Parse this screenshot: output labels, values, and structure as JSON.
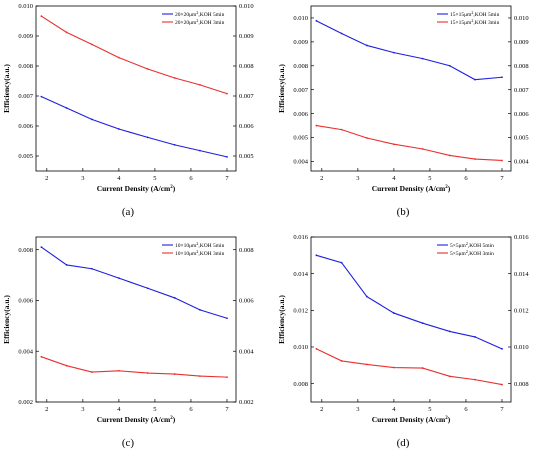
{
  "colors": {
    "series_blue": "#1f1fe0",
    "series_red": "#e8302f"
  },
  "chart_data": [
    {
      "type": "line",
      "caption": "(a)",
      "xlabel": "Current Density (A/cm",
      "xlabel_sup": "2",
      "xlabel_end": ")",
      "ylabel": "Efficiency(a.u.)",
      "xlim": [
        1.7,
        7.25
      ],
      "ylim": [
        0.0045,
        0.01
      ],
      "xticks": [
        "2",
        "3",
        "4",
        "5",
        "6",
        "7"
      ],
      "yticks": [
        "0.005",
        "0.006",
        "0.007",
        "0.008",
        "0.009",
        "0.010"
      ],
      "grid": false,
      "legend_position": "top-right",
      "x": [
        1.85,
        2.55,
        3.25,
        4.0,
        4.8,
        5.55,
        6.25,
        7.0
      ],
      "series": [
        {
          "name": "20×20μm",
          "name_sup": "2",
          "name_end": ",KOH 5min",
          "color": "#1f1fe0",
          "values": [
            0.00698,
            0.0066,
            0.00622,
            0.0059,
            0.00562,
            0.00537,
            0.00518,
            0.00497
          ]
        },
        {
          "name": "20×20μm",
          "name_sup": "2",
          "name_end": ",KOH 3min",
          "color": "#e8302f",
          "values": [
            0.00966,
            0.00912,
            0.00872,
            0.00828,
            0.0079,
            0.0076,
            0.00737,
            0.00708
          ]
        }
      ]
    },
    {
      "type": "line",
      "caption": "(b)",
      "xlabel": "Current Density (A/cm",
      "xlabel_sup": "2",
      "xlabel_end": ")",
      "ylabel": "Efficiency(a.u.)",
      "xlim": [
        1.7,
        7.25
      ],
      "ylim": [
        0.0036,
        0.0105
      ],
      "xticks": [
        "2",
        "3",
        "4",
        "5",
        "6",
        "7"
      ],
      "yticks": [
        "0.004",
        "0.005",
        "0.006",
        "0.007",
        "0.008",
        "0.009",
        "0.010"
      ],
      "grid": false,
      "legend_position": "top-right",
      "x": [
        1.85,
        2.55,
        3.25,
        4.0,
        4.8,
        5.55,
        6.25,
        7.0
      ],
      "series": [
        {
          "name": "15×15μm",
          "name_sup": "2",
          "name_end": ",KOH 5min",
          "color": "#1f1fe0",
          "values": [
            0.00988,
            0.00935,
            0.00885,
            0.00855,
            0.0083,
            0.008,
            0.00742,
            0.00752
          ]
        },
        {
          "name": "15×15μm",
          "name_sup": "2",
          "name_end": ",KOH 3min",
          "color": "#e8302f",
          "values": [
            0.0055,
            0.00533,
            0.00498,
            0.00472,
            0.00452,
            0.00425,
            0.0041,
            0.00404
          ]
        }
      ]
    },
    {
      "type": "line",
      "caption": "(c)",
      "xlabel": "Current Density (A/cm",
      "xlabel_sup": "2",
      "xlabel_end": ")",
      "ylabel": "Efficiency(a.u.)",
      "xlim": [
        1.7,
        7.25
      ],
      "ylim": [
        0.002,
        0.0085
      ],
      "xticks": [
        "2",
        "3",
        "4",
        "5",
        "6",
        "7"
      ],
      "yticks": [
        "0.002",
        "0.004",
        "0.006",
        "0.008"
      ],
      "grid": false,
      "legend_position": "top-right",
      "x": [
        1.85,
        2.55,
        3.25,
        4.0,
        4.8,
        5.55,
        6.25,
        7.0
      ],
      "series": [
        {
          "name": "10×10μm",
          "name_sup": "2",
          "name_end": ",KOH 5min",
          "color": "#1f1fe0",
          "values": [
            0.0081,
            0.0074,
            0.00725,
            0.00688,
            0.00648,
            0.0061,
            0.00563,
            0.0053
          ]
        },
        {
          "name": "10×10μm",
          "name_sup": "2",
          "name_end": ",KOH 3min",
          "color": "#e8302f",
          "values": [
            0.00378,
            0.00343,
            0.00318,
            0.00323,
            0.00314,
            0.0031,
            0.00302,
            0.00298
          ]
        }
      ]
    },
    {
      "type": "line",
      "caption": "(d)",
      "xlabel": "Current Density (A/cm",
      "xlabel_sup": "2",
      "xlabel_end": ")",
      "ylabel": "Efficiency(a.u.)",
      "xlim": [
        1.7,
        7.25
      ],
      "ylim": [
        0.007,
        0.016
      ],
      "xticks": [
        "2",
        "3",
        "4",
        "5",
        "6",
        "7"
      ],
      "yticks": [
        "0.008",
        "0.010",
        "0.012",
        "0.014",
        "0.016"
      ],
      "grid": false,
      "legend_position": "top-right",
      "x": [
        1.85,
        2.55,
        3.25,
        4.0,
        4.8,
        5.55,
        6.25,
        7.0
      ],
      "series": [
        {
          "name": "5×5μm",
          "name_sup": "2",
          "name_end": ",KOH 5min",
          "color": "#1f1fe0",
          "values": [
            0.015,
            0.0146,
            0.01275,
            0.01185,
            0.0113,
            0.01085,
            0.01055,
            0.0099
          ]
        },
        {
          "name": "5×5μm",
          "name_sup": "2",
          "name_end": ",KOH 3min",
          "color": "#e8302f",
          "values": [
            0.0099,
            0.00924,
            0.00905,
            0.00888,
            0.00885,
            0.0084,
            0.00822,
            0.00795
          ]
        }
      ]
    }
  ]
}
